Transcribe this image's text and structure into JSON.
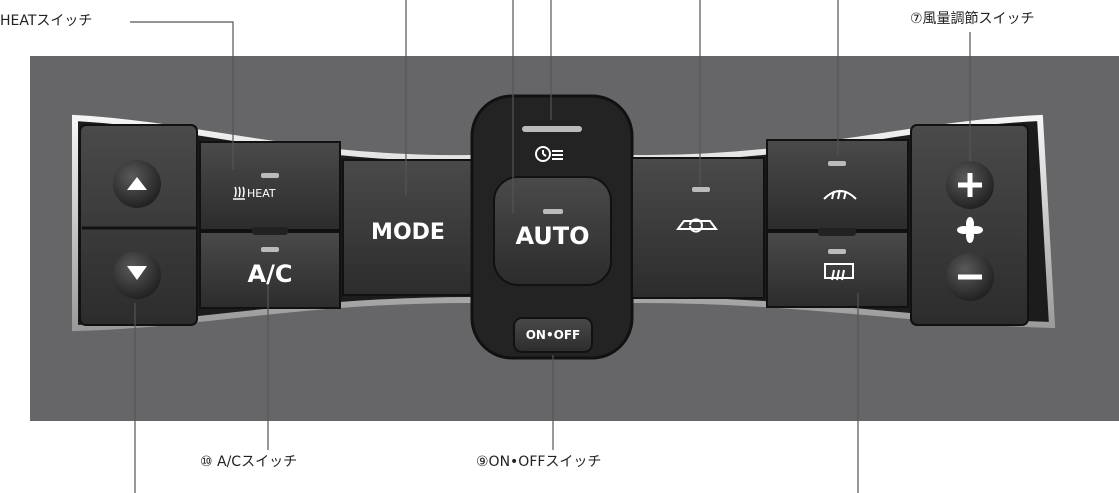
{
  "callouts": {
    "heat_switch": "HEATスイッチ",
    "fan_speed_switch": "⑦風量調節スイッチ",
    "ac_switch": "⑩ A/Cスイッチ",
    "onoff_switch": "⑨ON•OFFスイッチ"
  },
  "buttons": {
    "heat_label": "HEAT",
    "ac_label": "A/C",
    "mode_label": "MODE",
    "auto_label": "AUTO",
    "onoff_label": "ON•OFF"
  },
  "icons": [
    "temp-up-arrow-icon",
    "temp-down-arrow-icon",
    "heat-seat-icon",
    "recirculation-icon",
    "front-defroster-icon",
    "rear-defroster-icon",
    "fan-icon",
    "plus-icon",
    "minus-icon",
    "fresh-air-icon"
  ],
  "colors": {
    "panel": "#666668",
    "button": "#3a3a3a",
    "chrome": "#e8e8e8",
    "text": "#ffffff"
  }
}
